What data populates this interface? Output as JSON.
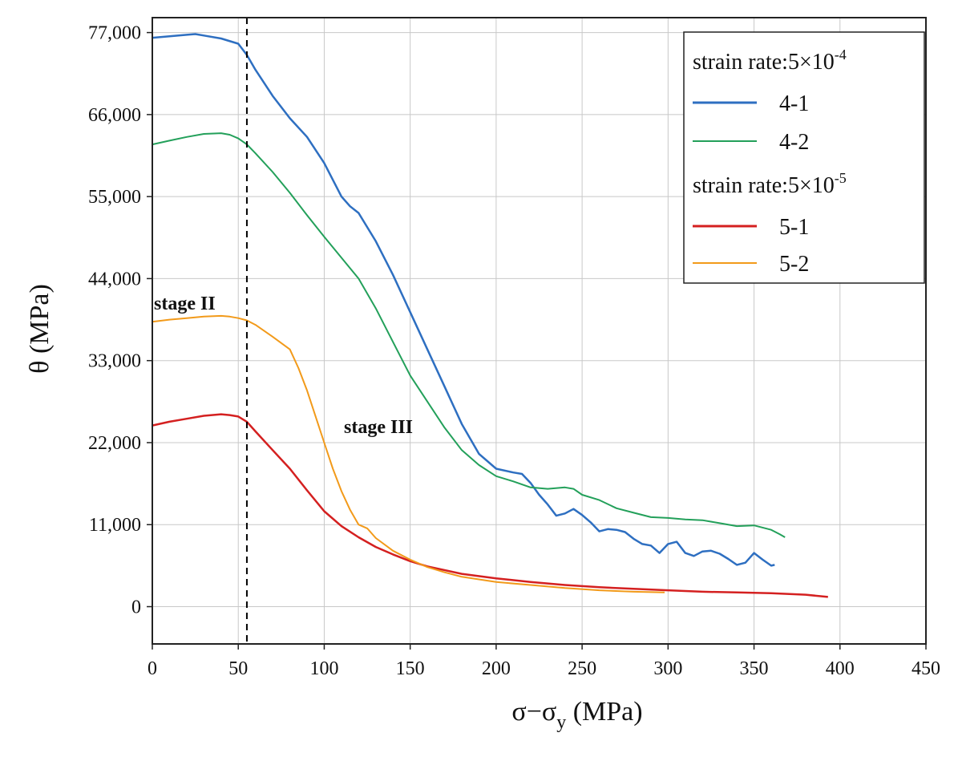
{
  "chart_data": {
    "type": "line",
    "xlabel": "σ−σ",
    "xlabel_sub": "y",
    "xlabel_unit": " (MPa)",
    "ylabel": "θ (MPa)",
    "xlim": [
      0,
      450
    ],
    "ylim": [
      -5000,
      79000
    ],
    "x_ticks": [
      0,
      50,
      100,
      150,
      200,
      250,
      300,
      350,
      400,
      450
    ],
    "x_tick_labels": [
      "0",
      "50",
      "100",
      "150",
      "200",
      "250",
      "300",
      "350",
      "400",
      "450"
    ],
    "y_ticks": [
      0,
      11000,
      22000,
      33000,
      44000,
      55000,
      66000,
      77000
    ],
    "y_tick_labels": [
      "0",
      "11,000",
      "22,000",
      "33,000",
      "44,000",
      "55,000",
      "66,000",
      "77,000"
    ],
    "grid": true,
    "legend_position": "top-right",
    "legend": {
      "group1_header": "strain rate:5×10",
      "group1_exp": "-4",
      "group2_header": "strain rate:5×10",
      "group2_exp": "-5"
    },
    "annotations": [
      {
        "text": "stage II",
        "x": 0,
        "y": 38700
      },
      {
        "text": "stage III",
        "x": 112,
        "y": 24000
      }
    ],
    "vline_x": 55,
    "series": [
      {
        "name": "4-1",
        "color": "#2e6fc1",
        "x": [
          0,
          10,
          20,
          25,
          30,
          40,
          50,
          55,
          60,
          70,
          80,
          90,
          100,
          110,
          115,
          120,
          130,
          140,
          150,
          160,
          170,
          180,
          190,
          200,
          210,
          215,
          220,
          225,
          230,
          235,
          240,
          245,
          250,
          255,
          260,
          265,
          270,
          275,
          280,
          285,
          290,
          295,
          300,
          305,
          310,
          315,
          320,
          325,
          330,
          335,
          340,
          345,
          350,
          355,
          360,
          362
        ],
        "values": [
          76300,
          76500,
          76700,
          76800,
          76600,
          76200,
          75500,
          74000,
          72000,
          68500,
          65500,
          63000,
          59500,
          55000,
          53700,
          52800,
          49000,
          44500,
          39500,
          34500,
          29500,
          24500,
          20500,
          18500,
          18000,
          17800,
          16600,
          15000,
          13700,
          12200,
          12500,
          13100,
          12300,
          11300,
          10100,
          10400,
          10300,
          10000,
          9100,
          8400,
          8200,
          7200,
          8400,
          8700,
          7200,
          6800,
          7400,
          7500,
          7100,
          6400,
          5600,
          5900,
          7200,
          6300,
          5500,
          5600
        ]
      },
      {
        "name": "4-2",
        "color": "#23a05a",
        "x": [
          0,
          10,
          20,
          30,
          40,
          45,
          50,
          55,
          60,
          70,
          80,
          90,
          100,
          110,
          120,
          130,
          140,
          150,
          160,
          170,
          180,
          190,
          200,
          210,
          220,
          230,
          240,
          245,
          250,
          260,
          270,
          280,
          290,
          300,
          310,
          320,
          330,
          340,
          350,
          360,
          365,
          368
        ],
        "values": [
          62000,
          62500,
          63000,
          63400,
          63500,
          63300,
          62800,
          62000,
          60800,
          58300,
          55500,
          52500,
          49600,
          46800,
          44000,
          40000,
          35500,
          31000,
          27500,
          24000,
          21000,
          19000,
          17500,
          16800,
          16000,
          15800,
          16000,
          15800,
          15000,
          14300,
          13200,
          12600,
          12000,
          11900,
          11700,
          11600,
          11200,
          10800,
          10900,
          10300,
          9700,
          9300
        ]
      },
      {
        "name": "5-1",
        "color": "#d42020",
        "x": [
          0,
          10,
          20,
          30,
          40,
          45,
          50,
          55,
          60,
          70,
          80,
          90,
          100,
          110,
          120,
          130,
          140,
          150,
          160,
          180,
          200,
          220,
          240,
          260,
          280,
          300,
          320,
          340,
          360,
          380,
          393
        ],
        "values": [
          24300,
          24800,
          25200,
          25600,
          25800,
          25700,
          25500,
          24800,
          23500,
          21000,
          18500,
          15600,
          12800,
          10800,
          9300,
          8000,
          7000,
          6100,
          5400,
          4400,
          3800,
          3300,
          2900,
          2600,
          2400,
          2200,
          2000,
          1900,
          1800,
          1600,
          1300
        ]
      },
      {
        "name": "5-2",
        "color": "#f29a1a",
        "x": [
          0,
          10,
          20,
          30,
          40,
          45,
          50,
          55,
          60,
          70,
          80,
          85,
          90,
          95,
          100,
          105,
          110,
          115,
          120,
          125,
          130,
          140,
          150,
          160,
          170,
          180,
          200,
          220,
          240,
          260,
          280,
          298
        ],
        "values": [
          38200,
          38500,
          38700,
          38900,
          39000,
          38900,
          38700,
          38400,
          37800,
          36200,
          34500,
          32000,
          29000,
          25500,
          22000,
          18500,
          15500,
          13000,
          11000,
          10500,
          9200,
          7500,
          6300,
          5300,
          4600,
          4000,
          3300,
          2900,
          2500,
          2200,
          2000,
          1900
        ]
      }
    ]
  }
}
